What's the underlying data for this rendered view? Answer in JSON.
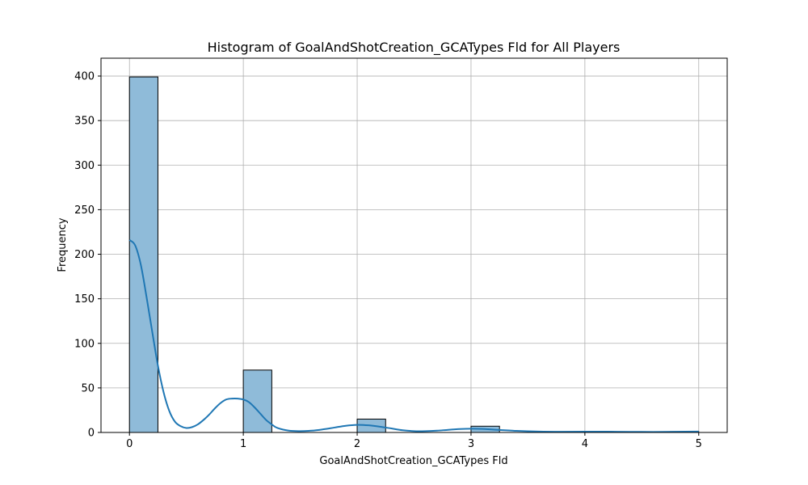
{
  "chart_data": {
    "type": "histogram",
    "title": "Histogram of GoalAndShotCreation_GCATypes Fld for All Players",
    "xlabel": "GoalAndShotCreation_GCATypes Fld",
    "ylabel": "Frequency",
    "xlim": [
      -0.25,
      5.25
    ],
    "ylim": [
      0,
      420
    ],
    "x_ticks": [
      0,
      1,
      2,
      3,
      4,
      5
    ],
    "y_ticks": [
      0,
      50,
      100,
      150,
      200,
      250,
      300,
      350,
      400
    ],
    "grid": true,
    "bar_color": "#8fbbd9",
    "bar_edge_color": "#000000",
    "kde_color": "#1f77b4",
    "bins": [
      {
        "x0": 0.0,
        "x1": 0.25,
        "count": 399
      },
      {
        "x0": 1.0,
        "x1": 1.25,
        "count": 70
      },
      {
        "x0": 2.0,
        "x1": 2.25,
        "count": 15
      },
      {
        "x0": 3.0,
        "x1": 3.25,
        "count": 7
      },
      {
        "x0": 4.0,
        "x1": 4.25,
        "count": 1
      },
      {
        "x0": 4.75,
        "x1": 5.0,
        "count": 1
      }
    ],
    "kde": {
      "x": [
        0,
        0.05,
        0.1,
        0.15,
        0.2,
        0.25,
        0.3,
        0.35,
        0.4,
        0.45,
        0.5,
        0.55,
        0.6,
        0.65,
        0.7,
        0.75,
        0.8,
        0.85,
        0.9,
        0.95,
        1.0,
        1.05,
        1.1,
        1.15,
        1.2,
        1.25,
        1.3,
        1.4,
        1.5,
        1.6,
        1.7,
        1.8,
        1.9,
        2.0,
        2.1,
        2.2,
        2.3,
        2.4,
        2.5,
        2.6,
        2.7,
        2.8,
        2.9,
        3.0,
        3.1,
        3.2,
        3.4,
        3.6,
        3.8,
        4.0,
        4.2,
        4.4,
        4.6,
        4.8,
        5.0
      ],
      "y": [
        216,
        210,
        188,
        152,
        113,
        75,
        45,
        24,
        12,
        7,
        5,
        6,
        9,
        14,
        20,
        27,
        33,
        37,
        38,
        38,
        37,
        34,
        28,
        21,
        14,
        9,
        5,
        2,
        1.5,
        2,
        3.5,
        5.5,
        7.5,
        8.5,
        8,
        6.5,
        4.5,
        2.5,
        1.5,
        1.5,
        2,
        3,
        3.8,
        4.2,
        4,
        3.2,
        1.8,
        1,
        0.8,
        0.9,
        0.9,
        0.7,
        0.6,
        0.8,
        1
      ]
    }
  }
}
